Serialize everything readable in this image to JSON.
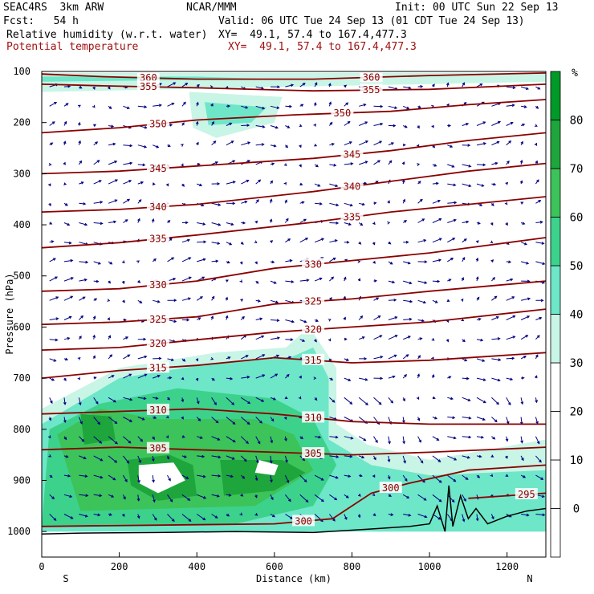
{
  "header": {
    "model": "SEAC4RS  3km ARW",
    "center": "NCAR/MMM",
    "init": "Init: 00 UTC Sun 22 Sep 13",
    "fcst": "Fcst:   54 h",
    "valid": "Valid: 06 UTC Tue 24 Sep 13 (01 CDT Tue 24 Sep 13)",
    "field1": "Relative humidity (w.r.t. water)",
    "field1_xy": "XY=  49.1, 57.4 to 167.4,477.3",
    "field2": "Potential temperature",
    "field2_xy": "XY=  49.1, 57.4 to 167.4,477.3"
  },
  "colors": {
    "theta": "#8b0000",
    "wind": "#000080",
    "terrain": "#000000",
    "rh_shades": [
      "#ffffff",
      "#ffffff",
      "#ffffff",
      "#c8f5e6",
      "#6ee6c8",
      "#3cd28c",
      "#3cc35a",
      "#1ea53c"
    ]
  },
  "chart_data": {
    "type": "cross-section",
    "xlabel": "Distance (km)",
    "ylabel": "Pressure (hPa)",
    "xlim": [
      0,
      1300
    ],
    "ylim": [
      1050,
      100
    ],
    "x_ticks": [
      "0",
      "200",
      "400",
      "600",
      "800",
      "1000",
      "1200"
    ],
    "y_ticks": [
      "100",
      "200",
      "300",
      "400",
      "500",
      "600",
      "700",
      "800",
      "900",
      "1000"
    ],
    "x_end_labels": {
      "left": "S",
      "right": "N"
    },
    "colorbar": {
      "unit": "%",
      "labels": [
        "0",
        "10",
        "20",
        "30",
        "40",
        "50",
        "60",
        "70",
        "80"
      ],
      "levels": [
        -10,
        0,
        10,
        20,
        30,
        40,
        50,
        60,
        70,
        80,
        90
      ]
    },
    "theta_contours": [
      {
        "label": "360",
        "points": [
          [
            0,
            105
          ],
          [
            150,
            110
          ],
          [
            400,
            115
          ],
          [
            700,
            115
          ],
          [
            1000,
            108
          ],
          [
            1300,
            103
          ]
        ]
      },
      {
        "label": "355",
        "points": [
          [
            0,
            125
          ],
          [
            150,
            128
          ],
          [
            400,
            132
          ],
          [
            700,
            138
          ],
          [
            1000,
            135
          ],
          [
            1300,
            125
          ]
        ]
      },
      {
        "label": "350",
        "points": [
          [
            0,
            220
          ],
          [
            200,
            210
          ],
          [
            400,
            195
          ],
          [
            650,
            185
          ],
          [
            900,
            178
          ],
          [
            1100,
            165
          ],
          [
            1300,
            155
          ]
        ]
      },
      {
        "label": "345",
        "points": [
          [
            0,
            300
          ],
          [
            200,
            295
          ],
          [
            400,
            285
          ],
          [
            700,
            270
          ],
          [
            900,
            255
          ],
          [
            1100,
            235
          ],
          [
            1300,
            220
          ]
        ]
      },
      {
        "label": "340",
        "points": [
          [
            0,
            375
          ],
          [
            200,
            370
          ],
          [
            400,
            360
          ],
          [
            700,
            335
          ],
          [
            900,
            315
          ],
          [
            1100,
            295
          ],
          [
            1300,
            280
          ]
        ]
      },
      {
        "label": "335",
        "points": [
          [
            0,
            445
          ],
          [
            200,
            435
          ],
          [
            400,
            420
          ],
          [
            700,
            395
          ],
          [
            900,
            375
          ],
          [
            1100,
            360
          ],
          [
            1300,
            345
          ]
        ]
      },
      {
        "label": "330",
        "points": [
          [
            0,
            530
          ],
          [
            200,
            525
          ],
          [
            400,
            510
          ],
          [
            600,
            485
          ],
          [
            800,
            470
          ],
          [
            1000,
            455
          ],
          [
            1300,
            425
          ]
        ]
      },
      {
        "label": "325",
        "points": [
          [
            0,
            595
          ],
          [
            200,
            590
          ],
          [
            400,
            580
          ],
          [
            600,
            555
          ],
          [
            800,
            545
          ],
          [
            1000,
            530
          ],
          [
            1300,
            510
          ]
        ]
      },
      {
        "label": "320",
        "points": [
          [
            0,
            645
          ],
          [
            200,
            640
          ],
          [
            400,
            625
          ],
          [
            600,
            610
          ],
          [
            800,
            600
          ],
          [
            1000,
            590
          ],
          [
            1300,
            565
          ]
        ]
      },
      {
        "label": "315",
        "points": [
          [
            0,
            700
          ],
          [
            200,
            685
          ],
          [
            400,
            675
          ],
          [
            600,
            660
          ],
          [
            800,
            670
          ],
          [
            1000,
            665
          ],
          [
            1300,
            650
          ]
        ]
      },
      {
        "label": "310",
        "points": [
          [
            0,
            770
          ],
          [
            200,
            765
          ],
          [
            400,
            760
          ],
          [
            600,
            770
          ],
          [
            800,
            785
          ],
          [
            1000,
            790
          ],
          [
            1300,
            790
          ]
        ]
      },
      {
        "label": "305",
        "points": [
          [
            0,
            840
          ],
          [
            200,
            835
          ],
          [
            400,
            840
          ],
          [
            600,
            845
          ],
          [
            800,
            850
          ],
          [
            1000,
            845
          ],
          [
            1300,
            835
          ]
        ]
      },
      {
        "label": "300",
        "points": [
          [
            0,
            990
          ],
          [
            600,
            985
          ],
          [
            750,
            975
          ],
          [
            850,
            925
          ],
          [
            950,
            905
          ],
          [
            1100,
            880
          ],
          [
            1300,
            870
          ]
        ]
      },
      {
        "label": "295",
        "points": [
          [
            1100,
            935
          ],
          [
            1200,
            930
          ],
          [
            1300,
            925
          ]
        ]
      }
    ],
    "rh_regions": [
      {
        "level": 30,
        "points": [
          [
            0,
            103
          ],
          [
            1300,
            103
          ],
          [
            1300,
            120
          ],
          [
            0,
            140
          ]
        ]
      },
      {
        "level": 40,
        "points": [
          [
            0,
            110
          ],
          [
            400,
            110
          ],
          [
            600,
            115
          ],
          [
            0,
            120
          ]
        ]
      },
      {
        "level": 30,
        "points": [
          [
            380,
            140
          ],
          [
            620,
            150
          ],
          [
            600,
            200
          ],
          [
            450,
            230
          ],
          [
            390,
            210
          ]
        ]
      },
      {
        "level": 40,
        "points": [
          [
            420,
            160
          ],
          [
            580,
            170
          ],
          [
            540,
            200
          ],
          [
            430,
            205
          ]
        ]
      },
      {
        "level": 30,
        "points": [
          [
            0,
            760
          ],
          [
            200,
            680
          ],
          [
            450,
            650
          ],
          [
            630,
            640
          ],
          [
            690,
            600
          ],
          [
            760,
            680
          ],
          [
            760,
            790
          ],
          [
            840,
            830
          ],
          [
            1000,
            860
          ],
          [
            1300,
            820
          ],
          [
            1300,
            1000
          ],
          [
            0,
            1000
          ]
        ]
      },
      {
        "level": 40,
        "points": [
          [
            0,
            790
          ],
          [
            200,
            700
          ],
          [
            450,
            670
          ],
          [
            640,
            660
          ],
          [
            700,
            640
          ],
          [
            740,
            700
          ],
          [
            740,
            820
          ],
          [
            850,
            870
          ],
          [
            1000,
            890
          ],
          [
            1300,
            880
          ],
          [
            1300,
            1000
          ],
          [
            0,
            1000
          ]
        ]
      },
      {
        "level": 50,
        "points": [
          [
            20,
            800
          ],
          [
            150,
            750
          ],
          [
            350,
            720
          ],
          [
            600,
            740
          ],
          [
            700,
            780
          ],
          [
            760,
            870
          ],
          [
            700,
            950
          ],
          [
            500,
            985
          ],
          [
            0,
            990
          ]
        ]
      },
      {
        "level": 60,
        "points": [
          [
            40,
            810
          ],
          [
            150,
            760
          ],
          [
            300,
            780
          ],
          [
            550,
            780
          ],
          [
            650,
            810
          ],
          [
            700,
            880
          ],
          [
            550,
            950
          ],
          [
            100,
            960
          ]
        ]
      },
      {
        "level": 70,
        "points": [
          [
            220,
            860
          ],
          [
            330,
            850
          ],
          [
            390,
            870
          ],
          [
            400,
            930
          ],
          [
            300,
            940
          ],
          [
            230,
            910
          ]
        ]
      },
      {
        "level": 70,
        "points": [
          [
            460,
            860
          ],
          [
            620,
            860
          ],
          [
            680,
            885
          ],
          [
            600,
            920
          ],
          [
            470,
            930
          ]
        ]
      },
      {
        "level": 70,
        "points": [
          [
            100,
            770
          ],
          [
            180,
            775
          ],
          [
            190,
            820
          ],
          [
            110,
            830
          ]
        ]
      },
      {
        "level": 80,
        "points": [
          [
            250,
            870
          ],
          [
            340,
            865
          ],
          [
            370,
            900
          ],
          [
            300,
            925
          ],
          [
            250,
            905
          ]
        ]
      },
      {
        "level": 80,
        "points": [
          [
            560,
            860
          ],
          [
            610,
            870
          ],
          [
            600,
            890
          ],
          [
            550,
            885
          ]
        ]
      }
    ],
    "terrain": [
      [
        0,
        1005
      ],
      [
        100,
        1003
      ],
      [
        300,
        1002
      ],
      [
        500,
        1000
      ],
      [
        700,
        1002
      ],
      [
        850,
        995
      ],
      [
        950,
        990
      ],
      [
        1000,
        985
      ],
      [
        1020,
        950
      ],
      [
        1040,
        1000
      ],
      [
        1050,
        910
      ],
      [
        1060,
        990
      ],
      [
        1080,
        930
      ],
      [
        1100,
        975
      ],
      [
        1120,
        955
      ],
      [
        1150,
        985
      ],
      [
        1200,
        970
      ],
      [
        1250,
        960
      ],
      [
        1300,
        955
      ]
    ]
  }
}
